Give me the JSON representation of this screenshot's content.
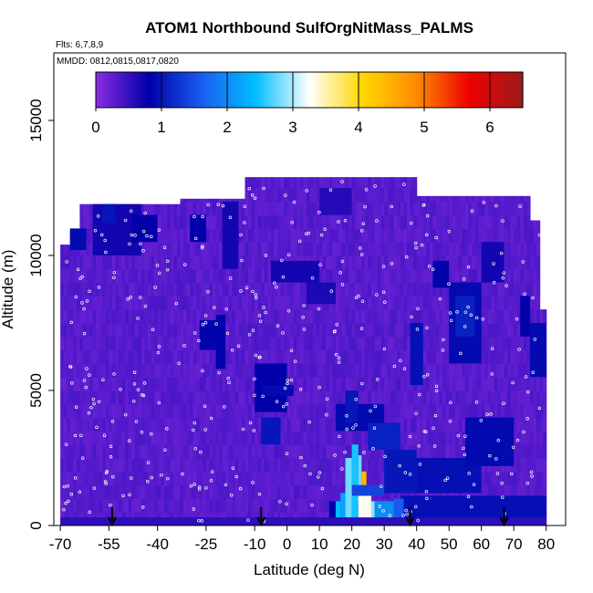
{
  "chart_data": {
    "type": "heatmap",
    "title": "ATOM1 Northbound SulfOrgNitMass_PALMS",
    "flights_note": "Flts: 6,7,8,9",
    "dates_note": "MMDD: 0812,0815,0817,0820",
    "xlabel": "Latitude (deg N)",
    "ylabel": "Altitude (m)",
    "xlim": [
      -72,
      86
    ],
    "ylim": [
      0,
      17500
    ],
    "x_ticks": [
      -70,
      -55,
      -40,
      -25,
      -10,
      0,
      10,
      20,
      30,
      40,
      50,
      60,
      70,
      80
    ],
    "x_tick_labels": [
      "-70",
      "-55",
      "-40",
      "-25",
      "-10",
      "0",
      "10",
      "20",
      "30",
      "40",
      "50",
      "60",
      "70",
      "80"
    ],
    "y_ticks": [
      0,
      5000,
      10000,
      15000
    ],
    "y_tick_labels": [
      "0",
      "5000",
      "10000",
      "15000"
    ],
    "colorbar": {
      "ticks": [
        0,
        1,
        2,
        3,
        4,
        5,
        6
      ],
      "tick_labels": [
        "0",
        "1",
        "2",
        "3",
        "4",
        "5",
        "6"
      ],
      "range": [
        0,
        6.5
      ],
      "colors": [
        "#8a2be2",
        "#0000a8",
        "#1a5ef0",
        "#00bfff",
        "#ffffff",
        "#ffd700",
        "#ff8c00",
        "#ee0000",
        "#9b1b1b"
      ]
    },
    "arrow_latitudes": [
      -54,
      -8,
      38,
      67
    ],
    "field": {
      "x_range": [
        -70,
        80
      ],
      "y_range": [
        0,
        13000
      ],
      "columns": [
        {
          "x0": -70,
          "x1": -67,
          "top": 10400
        },
        {
          "x0": -67,
          "x1": -64,
          "top": 10900
        },
        {
          "x0": -64,
          "x1": -57,
          "top": 11900
        },
        {
          "x0": -57,
          "x1": -33,
          "top": 11900
        },
        {
          "x0": -33,
          "x1": -13,
          "top": 12100
        },
        {
          "x0": -13,
          "x1": 37,
          "top": 12900
        },
        {
          "x0": 37,
          "x1": 40,
          "top": 12900
        },
        {
          "x0": 40,
          "x1": 75,
          "top": 12200
        },
        {
          "x0": 75,
          "x1": 78,
          "top": 11300
        },
        {
          "x0": 78,
          "x1": 80,
          "top": 8000
        }
      ],
      "base_value": 0.3,
      "patches": [
        {
          "x0": -67,
          "x1": -62,
          "y0": 11000,
          "y1": 10200,
          "v": 0.9
        },
        {
          "x0": -60,
          "x1": -45,
          "y0": 11900,
          "y1": 10000,
          "v": 0.7
        },
        {
          "x0": -57,
          "x1": -53,
          "y0": 11900,
          "y1": 11200,
          "v": 1.0
        },
        {
          "x0": -48,
          "x1": -40,
          "y0": 11500,
          "y1": 10500,
          "v": 0.8
        },
        {
          "x0": -30,
          "x1": -25,
          "y0": 11500,
          "y1": 10500,
          "v": 0.8
        },
        {
          "x0": -20,
          "x1": -15,
          "y0": 12000,
          "y1": 9500,
          "v": 0.7
        },
        {
          "x0": -27,
          "x1": -21,
          "y0": 7600,
          "y1": 6500,
          "v": 0.85
        },
        {
          "x0": -22,
          "x1": -19,
          "y0": 7800,
          "y1": 5800,
          "v": 0.85
        },
        {
          "x0": -10,
          "x1": 0,
          "y0": 6000,
          "y1": 4200,
          "v": 0.8
        },
        {
          "x0": -8,
          "x1": -2,
          "y0": 4000,
          "y1": 3000,
          "v": 1.0
        },
        {
          "x0": -8,
          "x1": 2,
          "y0": 5200,
          "y1": 4800,
          "v": 0.9
        },
        {
          "x0": -5,
          "x1": 10,
          "y0": 9800,
          "y1": 9000,
          "v": 0.7
        },
        {
          "x0": 6,
          "x1": 15,
          "y0": 9000,
          "y1": 8200,
          "v": 0.65
        },
        {
          "x0": 10,
          "x1": 20,
          "y0": 12500,
          "y1": 11500,
          "v": 0.6
        },
        {
          "x0": 15,
          "x1": 30,
          "y0": 4500,
          "y1": 3500,
          "v": 0.9
        },
        {
          "x0": 18,
          "x1": 22,
          "y0": 5000,
          "y1": 3800,
          "v": 1.0
        },
        {
          "x0": 25,
          "x1": 35,
          "y0": 3800,
          "y1": 2800,
          "v": 1.1
        },
        {
          "x0": 30,
          "x1": 40,
          "y0": 2800,
          "y1": 1200,
          "v": 1.0
        },
        {
          "x0": 40,
          "x1": 60,
          "y0": 2500,
          "y1": 1200,
          "v": 0.95
        },
        {
          "x0": 55,
          "x1": 70,
          "y0": 4000,
          "y1": 2200,
          "v": 0.9
        },
        {
          "x0": 38,
          "x1": 42,
          "y0": 7500,
          "y1": 5200,
          "v": 0.95
        },
        {
          "x0": 45,
          "x1": 50,
          "y0": 9800,
          "y1": 8800,
          "v": 0.85
        },
        {
          "x0": 50,
          "x1": 60,
          "y0": 9000,
          "y1": 6000,
          "v": 0.9
        },
        {
          "x0": 52,
          "x1": 58,
          "y0": 8500,
          "y1": 7000,
          "v": 1.1
        },
        {
          "x0": 60,
          "x1": 67,
          "y0": 10500,
          "y1": 9000,
          "v": 0.7
        },
        {
          "x0": 72,
          "x1": 75,
          "y0": 8500,
          "y1": 7000,
          "v": 0.8
        },
        {
          "x0": 75,
          "x1": 80,
          "y0": 7500,
          "y1": 5500,
          "v": 0.9
        },
        {
          "x0": 35,
          "x1": 80,
          "y0": 1100,
          "y1": 0,
          "v": 0.95
        },
        {
          "x0": 13,
          "x1": 30,
          "y0": 900,
          "y1": 0,
          "v": 0.8
        },
        {
          "x0": 15,
          "x1": 16.5,
          "y0": 900,
          "y1": 0,
          "v": 2.4
        },
        {
          "x0": 16.5,
          "x1": 18,
          "y0": 1200,
          "y1": 0,
          "v": 2.2
        },
        {
          "x0": 18,
          "x1": 20,
          "y0": 2500,
          "y1": 0,
          "v": 2.8
        },
        {
          "x0": 20,
          "x1": 22,
          "y0": 3000,
          "y1": 0,
          "v": 2.5
        },
        {
          "x0": 22,
          "x1": 23,
          "y0": 2600,
          "y1": 1200,
          "v": 2.8
        },
        {
          "x0": 23,
          "x1": 24.5,
          "y0": 2000,
          "y1": 1300,
          "v": 4.4
        },
        {
          "x0": 22,
          "x1": 26,
          "y0": 1100,
          "y1": 0,
          "v": 3.3
        },
        {
          "x0": 26,
          "x1": 29,
          "y0": 900,
          "y1": 0,
          "v": 2.9
        },
        {
          "x0": 27,
          "x1": 33,
          "y0": 900,
          "y1": 0,
          "v": 2.0
        },
        {
          "x0": 33,
          "x1": 36,
          "y0": 1000,
          "y1": 0,
          "v": 1.6
        },
        {
          "x0": 20,
          "x1": 30,
          "y0": 1500,
          "y1": 1100,
          "v": 1.4
        },
        {
          "x0": -70,
          "x1": 80,
          "y0": 300,
          "y1": 0,
          "v": 0.55
        }
      ]
    }
  }
}
